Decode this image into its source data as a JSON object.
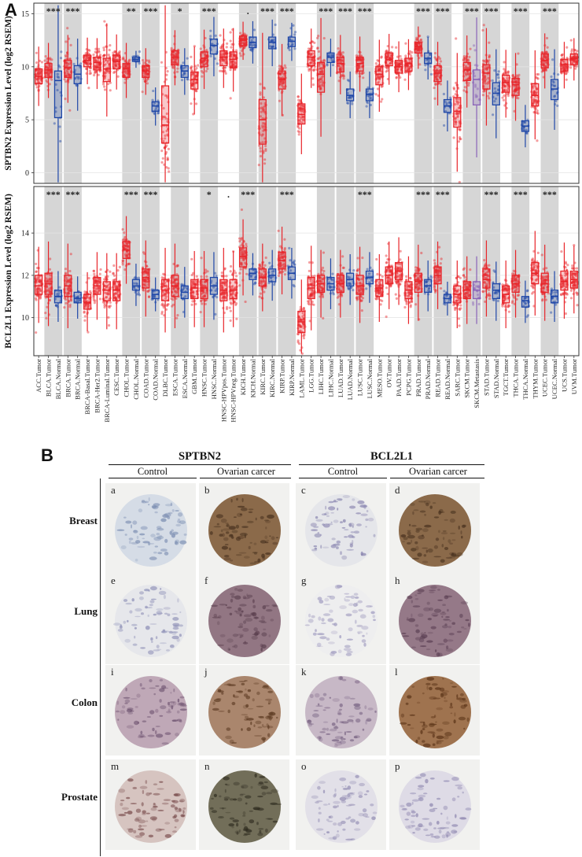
{
  "panel_labels": {
    "a": "A",
    "b": "B"
  },
  "chart_data": [
    {
      "type": "box",
      "title": "",
      "ylabel": "SPTBN2 Expression Level (log2 RSEM)",
      "ylim": [
        -1,
        16
      ],
      "yticks": [
        0,
        5,
        10,
        15
      ],
      "categories": [
        "ACC.Tumor",
        "BLCA.Tumor",
        "BLCA.Normal",
        "BRCA.Tumor",
        "BRCA.Normal",
        "BRCA-Basal.Tumor",
        "BRCA-Her2.Tumor",
        "BRCA-Luminal.Tumor",
        "CESC.Tumor",
        "CHOL.Tumor",
        "CHOL.Normal",
        "COAD.Tumor",
        "COAD.Normal",
        "DLBC.Tumor",
        "ESCA.Tumor",
        "ESCA.Normal",
        "GBM.Tumor",
        "HNSC.Tumor",
        "HNSC.Normal",
        "HNSC-HPVpos.Tumor",
        "HNSC-HPVneg.Tumor",
        "KICH.Tumor",
        "KICH.Normal",
        "KIRC.Tumor",
        "KIRC.Normal",
        "KIRP.Tumor",
        "KIRP.Normal",
        "LAML.Tumor",
        "LGG.Tumor",
        "LIHC.Tumor",
        "LIHC.Normal",
        "LUAD.Tumor",
        "LUAD.Normal",
        "LUSC.Tumor",
        "LUSC.Normal",
        "MESO.Tumor",
        "OV.Tumor",
        "PAAD.Tumor",
        "PCPG.Tumor",
        "PRAD.Tumor",
        "PRAD.Normal",
        "READ.Tumor",
        "READ.Normal",
        "SARC.Tumor",
        "SKCM.Tumor",
        "SKCM.Metastasis",
        "STAD.Tumor",
        "STAD.Normal",
        "TGCT.Tumor",
        "THCA.Tumor",
        "THCA.Normal",
        "THYM.Tumor",
        "UCEC.Tumor",
        "UCEC.Normal",
        "UCS.Tumor",
        "UVM.Tumor"
      ],
      "medians": [
        9.1,
        9.7,
        8.7,
        9.9,
        9.3,
        10.6,
        10.4,
        9.8,
        10.5,
        9.8,
        10.7,
        9.6,
        6.3,
        4.5,
        10.9,
        9.6,
        8.8,
        10.8,
        12.0,
        10.9,
        10.7,
        12.5,
        12.3,
        5.0,
        12.3,
        8.8,
        12.4,
        5.5,
        10.9,
        9.3,
        10.9,
        10.3,
        7.3,
        10.3,
        7.4,
        9.3,
        10.7,
        10.0,
        10.3,
        11.9,
        10.8,
        9.4,
        6.3,
        5.8,
        9.7,
        8.8,
        9.4,
        7.5,
        8.5,
        8.3,
        4.4,
        7.3,
        10.6,
        7.9,
        10.2,
        10.8
      ],
      "q1": [
        8.4,
        9.0,
        5.2,
        9.0,
        8.4,
        10.0,
        9.7,
        8.6,
        9.8,
        9.0,
        10.5,
        9.0,
        5.8,
        2.8,
        10.2,
        9.0,
        7.9,
        10.0,
        11.2,
        10.1,
        9.9,
        12.0,
        11.8,
        2.7,
        11.7,
        7.9,
        11.9,
        4.6,
        10.1,
        7.6,
        10.4,
        9.5,
        6.8,
        9.6,
        6.8,
        8.3,
        10.1,
        9.4,
        9.6,
        11.3,
        10.3,
        8.6,
        5.7,
        4.3,
        8.7,
        6.4,
        7.9,
        6.4,
        7.6,
        7.3,
        3.9,
        6.3,
        9.9,
        6.9,
        9.6,
        10.2
      ],
      "q3": [
        9.8,
        10.3,
        9.6,
        10.6,
        10.1,
        11.1,
        10.9,
        10.8,
        11.1,
        10.3,
        10.9,
        10.1,
        6.7,
        8.2,
        11.5,
        10.1,
        9.5,
        11.4,
        12.6,
        11.5,
        11.4,
        12.9,
        12.8,
        6.9,
        12.8,
        9.6,
        12.8,
        6.5,
        11.5,
        10.4,
        11.3,
        10.9,
        7.9,
        10.9,
        7.9,
        10.0,
        11.3,
        10.6,
        10.8,
        12.3,
        11.3,
        10.1,
        6.9,
        7.1,
        10.4,
        9.7,
        10.2,
        8.5,
        9.2,
        8.9,
        4.9,
        8.4,
        11.2,
        8.8,
        10.7,
        11.2
      ],
      "group": [
        "T",
        "T",
        "N",
        "T",
        "N",
        "T",
        "T",
        "T",
        "T",
        "T",
        "N",
        "T",
        "N",
        "T",
        "T",
        "N",
        "T",
        "T",
        "N",
        "T",
        "T",
        "T",
        "N",
        "T",
        "N",
        "T",
        "N",
        "T",
        "T",
        "T",
        "N",
        "T",
        "N",
        "T",
        "N",
        "T",
        "T",
        "T",
        "T",
        "T",
        "N",
        "T",
        "N",
        "T",
        "T",
        "M",
        "T",
        "N",
        "T",
        "T",
        "N",
        "T",
        "T",
        "N",
        "T",
        "T"
      ],
      "significance": [
        {
          "pair": "BLCA",
          "label": "***"
        },
        {
          "pair": "BRCA",
          "label": "***"
        },
        {
          "pair": "CHOL",
          "label": "**"
        },
        {
          "pair": "COAD",
          "label": "***"
        },
        {
          "pair": "ESCA",
          "label": "*"
        },
        {
          "pair": "HNSC",
          "label": "***"
        },
        {
          "pair": "KICH",
          "label": "."
        },
        {
          "pair": "KIRC",
          "label": "***"
        },
        {
          "pair": "KIRP",
          "label": "***"
        },
        {
          "pair": "LIHC",
          "label": "***"
        },
        {
          "pair": "LUAD",
          "label": "***"
        },
        {
          "pair": "LUSC",
          "label": "***"
        },
        {
          "pair": "PRAD",
          "label": "***"
        },
        {
          "pair": "READ",
          "label": "***"
        },
        {
          "pair": "SKCM",
          "label": "***"
        },
        {
          "pair": "STAD",
          "label": "***"
        },
        {
          "pair": "THCA",
          "label": "***"
        },
        {
          "pair": "UCEC",
          "label": "***"
        }
      ],
      "colors": {
        "tumor": "#e8252a",
        "normal": "#1f47a8",
        "metastasis": "#8a63b8",
        "shade": "#d6d6d6"
      }
    },
    {
      "type": "box",
      "title": "",
      "ylabel": "BCL2L1 Expression Level (log2 RSEM)",
      "ylim": [
        8.2,
        16.2
      ],
      "yticks": [
        10,
        12,
        14
      ],
      "categories": [
        "ACC.Tumor",
        "BLCA.Tumor",
        "BLCA.Normal",
        "BRCA.Tumor",
        "BRCA.Normal",
        "BRCA-Basal.Tumor",
        "BRCA-Her2.Tumor",
        "BRCA-Luminal.Tumor",
        "CESC.Tumor",
        "CHOL.Tumor",
        "CHOL.Normal",
        "COAD.Tumor",
        "COAD.Normal",
        "DLBC.Tumor",
        "ESCA.Tumor",
        "ESCA.Normal",
        "GBM.Tumor",
        "HNSC.Tumor",
        "HNSC.Normal",
        "HNSC-HPVpos.Tumor",
        "HNSC-HPVneg.Tumor",
        "KICH.Tumor",
        "KICH.Normal",
        "KIRC.Tumor",
        "KIRC.Normal",
        "KIRP.Tumor",
        "KIRP.Normal",
        "LAML.Tumor",
        "LGG.Tumor",
        "LIHC.Tumor",
        "LIHC.Normal",
        "LUAD.Tumor",
        "LUAD.Normal",
        "LUSC.Tumor",
        "LUSC.Normal",
        "MESO.Tumor",
        "OV.Tumor",
        "PAAD.Tumor",
        "PCPG.Tumor",
        "PRAD.Tumor",
        "PRAD.Normal",
        "READ.Tumor",
        "READ.Normal",
        "SARC.Tumor",
        "SKCM.Tumor",
        "SKCM.Metastasis",
        "STAD.Tumor",
        "STAD.Normal",
        "TGCT.Tumor",
        "THCA.Tumor",
        "THCA.Normal",
        "THYM.Tumor",
        "UCEC.Tumor",
        "UCEC.Normal",
        "UCS.Tumor",
        "UVM.Tumor"
      ],
      "medians": [
        11.5,
        11.6,
        11.0,
        11.5,
        10.9,
        10.7,
        11.5,
        11.3,
        11.3,
        13.2,
        11.5,
        11.9,
        11.1,
        11.3,
        11.5,
        11.2,
        11.4,
        11.4,
        11.5,
        11.3,
        11.3,
        12.9,
        12.1,
        11.9,
        12.0,
        12.7,
        12.1,
        9.8,
        11.4,
        11.6,
        11.6,
        11.6,
        11.8,
        11.5,
        11.9,
        11.4,
        12.0,
        12.2,
        11.3,
        11.7,
        11.5,
        12.0,
        10.9,
        11.1,
        11.3,
        11.3,
        11.8,
        11.3,
        11.1,
        11.6,
        10.8,
        12.1,
        11.6,
        11.0,
        11.7,
        11.8
      ],
      "q1": [
        11.1,
        11.1,
        10.7,
        11.0,
        10.7,
        10.4,
        11.1,
        10.8,
        10.8,
        12.8,
        11.3,
        11.4,
        10.9,
        10.8,
        11.0,
        10.9,
        10.9,
        10.9,
        11.1,
        10.8,
        10.9,
        12.4,
        11.8,
        11.5,
        11.7,
        12.3,
        11.8,
        9.3,
        10.9,
        11.2,
        11.3,
        11.2,
        11.5,
        11.1,
        11.6,
        11.0,
        11.6,
        11.8,
        10.9,
        11.2,
        11.2,
        11.6,
        10.7,
        10.7,
        10.9,
        10.9,
        11.4,
        10.9,
        10.7,
        11.2,
        10.5,
        11.6,
        11.2,
        10.7,
        11.3,
        11.4
      ],
      "q3": [
        12.0,
        12.1,
        11.3,
        12.0,
        11.2,
        11.1,
        11.9,
        11.7,
        11.7,
        13.6,
        11.8,
        12.3,
        11.3,
        11.8,
        12.0,
        11.5,
        11.8,
        11.8,
        11.9,
        11.8,
        11.8,
        13.3,
        12.3,
        12.3,
        12.3,
        13.1,
        12.4,
        10.3,
        11.9,
        12.0,
        11.9,
        12.0,
        12.1,
        12.0,
        12.2,
        11.8,
        12.4,
        12.6,
        11.7,
        12.1,
        11.8,
        12.4,
        11.1,
        11.5,
        11.7,
        11.7,
        12.3,
        11.6,
        11.5,
        12.0,
        11.0,
        12.6,
        12.1,
        11.3,
        12.2,
        12.2
      ],
      "group": [
        "T",
        "T",
        "N",
        "T",
        "N",
        "T",
        "T",
        "T",
        "T",
        "T",
        "N",
        "T",
        "N",
        "T",
        "T",
        "N",
        "T",
        "T",
        "N",
        "T",
        "T",
        "T",
        "N",
        "T",
        "N",
        "T",
        "N",
        "T",
        "T",
        "T",
        "N",
        "T",
        "N",
        "T",
        "N",
        "T",
        "T",
        "T",
        "T",
        "T",
        "N",
        "T",
        "N",
        "T",
        "T",
        "M",
        "T",
        "N",
        "T",
        "T",
        "N",
        "T",
        "T",
        "N",
        "T",
        "T"
      ],
      "significance": [
        {
          "pair": "BLCA",
          "label": "***"
        },
        {
          "pair": "BRCA",
          "label": "***"
        },
        {
          "pair": "CHOL",
          "label": "***"
        },
        {
          "pair": "COAD",
          "label": "***"
        },
        {
          "pair": "HNSC",
          "label": "*"
        },
        {
          "pair": "HNSC-HPV",
          "label": "."
        },
        {
          "pair": "KICH",
          "label": "***"
        },
        {
          "pair": "KIRP",
          "label": "***"
        },
        {
          "pair": "LUSC",
          "label": "***"
        },
        {
          "pair": "PRAD",
          "label": "***"
        },
        {
          "pair": "READ",
          "label": "***"
        },
        {
          "pair": "STAD",
          "label": "***"
        },
        {
          "pair": "THCA",
          "label": "***"
        },
        {
          "pair": "UCEC",
          "label": "***"
        }
      ],
      "colors": {
        "tumor": "#e8252a",
        "normal": "#1f47a8",
        "metastasis": "#8a63b8",
        "shade": "#d6d6d6"
      }
    }
  ],
  "panel_b": {
    "genes": [
      "SPTBN2",
      "BCL2L1"
    ],
    "columns": [
      "Control",
      "Ovarian carcer",
      "Control",
      "Ovarian carcer"
    ],
    "rows": [
      {
        "label": "Breast",
        "letters": [
          "a",
          "b",
          "c",
          "d"
        ]
      },
      {
        "label": "Lung",
        "letters": [
          "e",
          "f",
          "g",
          "h"
        ]
      },
      {
        "label": "Colon",
        "letters": [
          "i",
          "j",
          "k",
          "l"
        ]
      },
      {
        "label": "Prostate",
        "letters": [
          "m",
          "n",
          "o",
          "p"
        ]
      }
    ]
  }
}
